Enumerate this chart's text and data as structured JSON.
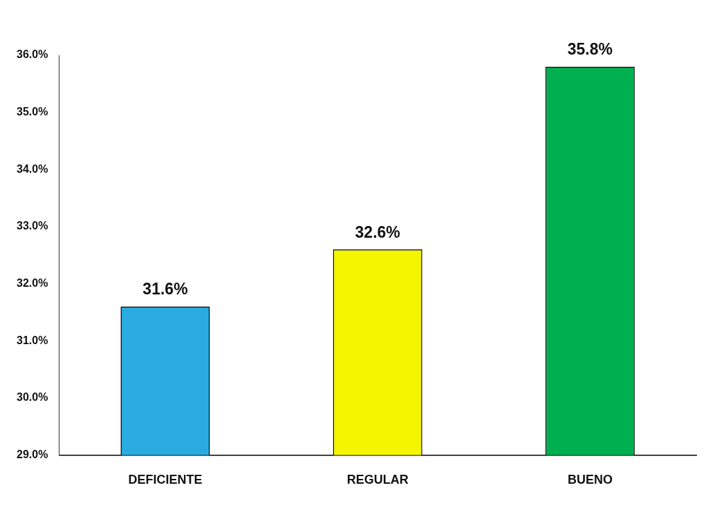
{
  "chart_data": {
    "type": "bar",
    "categories": [
      "DEFICIENTE",
      "REGULAR",
      "BUENO"
    ],
    "values": [
      31.6,
      32.6,
      35.8
    ],
    "colors": [
      "#29abe2",
      "#f5f500",
      "#00b050"
    ],
    "ylim": [
      29,
      36
    ],
    "yticks": [
      {
        "value": 29,
        "label": "29.0%"
      },
      {
        "value": 30,
        "label": "30.0%"
      },
      {
        "value": 31,
        "label": "31.0%"
      },
      {
        "value": 32,
        "label": "32.0%"
      },
      {
        "value": 33,
        "label": "33.0%"
      },
      {
        "value": 34,
        "label": "34.0%"
      },
      {
        "value": 35,
        "label": "35.0%"
      },
      {
        "value": 36,
        "label": "36.0%"
      }
    ],
    "value_labels": [
      "31.6%",
      "32.6%",
      "35.8%"
    ]
  }
}
